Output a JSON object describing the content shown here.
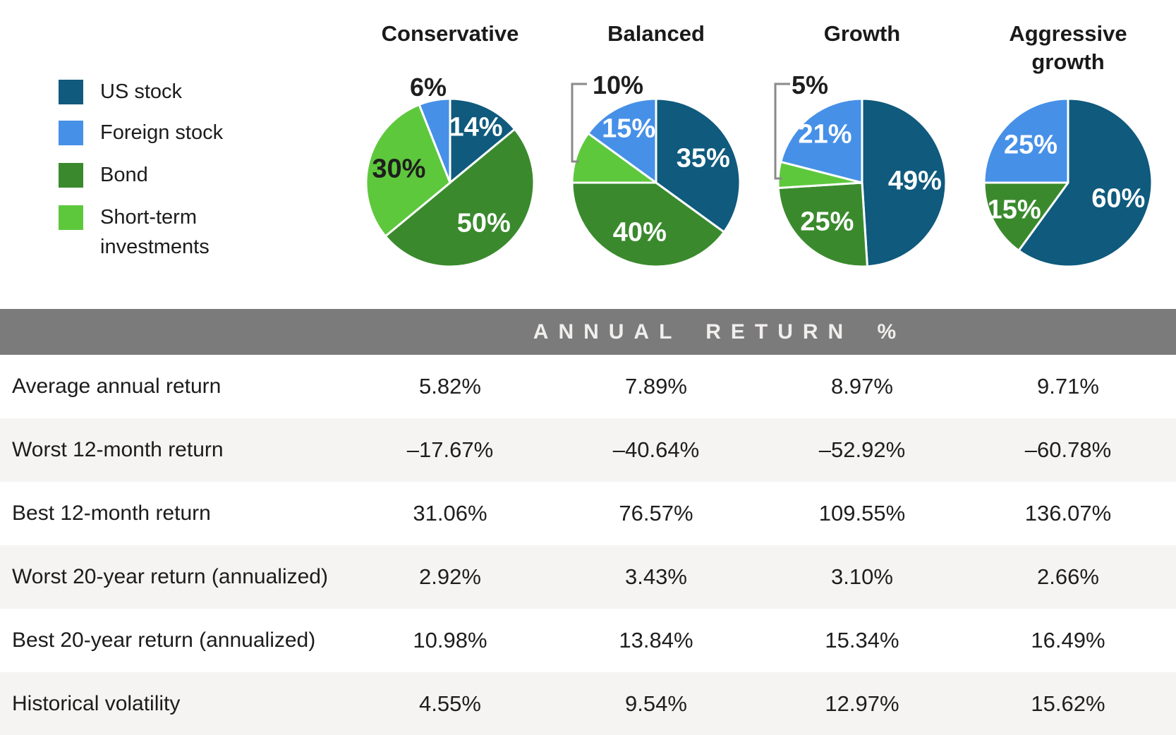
{
  "legend": {
    "items": [
      {
        "label": "US stock",
        "color": "#0f5a7d"
      },
      {
        "label": "Foreign stock",
        "color": "#4690e8"
      },
      {
        "label": "Bond",
        "color": "#3a8a2d"
      },
      {
        "label": "Short-term investments",
        "color": "#5ec83d"
      }
    ]
  },
  "chart_data": [
    {
      "type": "pie",
      "title": "Conservative",
      "labels": [
        "US stock",
        "Bond",
        "Short-term investments",
        "Foreign stock"
      ],
      "values": [
        14,
        50,
        30,
        6
      ],
      "display_labels": [
        "14%",
        "50%",
        "30%",
        "6%"
      ],
      "label_placement": [
        "inside",
        "inside",
        "inside",
        "outside"
      ],
      "label_tone": [
        "light",
        "light",
        "dark",
        "dark"
      ]
    },
    {
      "type": "pie",
      "title": "Balanced",
      "labels": [
        "US stock",
        "Bond",
        "Short-term investments",
        "Foreign stock"
      ],
      "values": [
        35,
        40,
        10,
        15
      ],
      "display_labels": [
        "35%",
        "40%",
        "10%",
        "15%"
      ],
      "label_placement": [
        "inside",
        "inside",
        "outside",
        "inside"
      ],
      "label_tone": [
        "light",
        "light",
        "dark",
        "light"
      ]
    },
    {
      "type": "pie",
      "title": "Growth",
      "labels": [
        "US stock",
        "Bond",
        "Short-term investments",
        "Foreign stock"
      ],
      "values": [
        49,
        25,
        5,
        21
      ],
      "display_labels": [
        "49%",
        "25%",
        "5%",
        "21%"
      ],
      "label_placement": [
        "inside",
        "inside",
        "outside",
        "inside"
      ],
      "label_tone": [
        "light",
        "light",
        "dark",
        "light"
      ]
    },
    {
      "type": "pie",
      "title": "Aggressive growth",
      "labels": [
        "US stock",
        "Bond",
        "Foreign stock"
      ],
      "values": [
        60,
        15,
        25
      ],
      "display_labels": [
        "60%",
        "15%",
        "25%"
      ],
      "label_placement": [
        "inside",
        "inside",
        "inside"
      ],
      "label_tone": [
        "light",
        "light",
        "light"
      ]
    },
    {
      "type": "table",
      "title": "ANNUAL RETURN %",
      "columns": [
        "Conservative",
        "Balanced",
        "Growth",
        "Aggressive growth"
      ],
      "rows": [
        {
          "label": "Average annual return",
          "values": [
            "5.82%",
            "7.89%",
            "8.97%",
            "9.71%"
          ]
        },
        {
          "label": "Worst 12-month return",
          "values": [
            "–17.67%",
            "–40.64%",
            "–52.92%",
            "–60.78%"
          ]
        },
        {
          "label": "Best 12-month return",
          "values": [
            "31.06%",
            "76.57%",
            "109.55%",
            "136.07%"
          ]
        },
        {
          "label": "Worst 20-year return (annualized)",
          "values": [
            "2.92%",
            "3.43%",
            "3.10%",
            "2.66%"
          ]
        },
        {
          "label": "Best 20-year return (annualized)",
          "values": [
            "10.98%",
            "13.84%",
            "15.34%",
            "16.49%"
          ]
        },
        {
          "label": "Historical volatility",
          "values": [
            "4.55%",
            "9.54%",
            "12.97%",
            "15.62%"
          ]
        }
      ]
    }
  ]
}
